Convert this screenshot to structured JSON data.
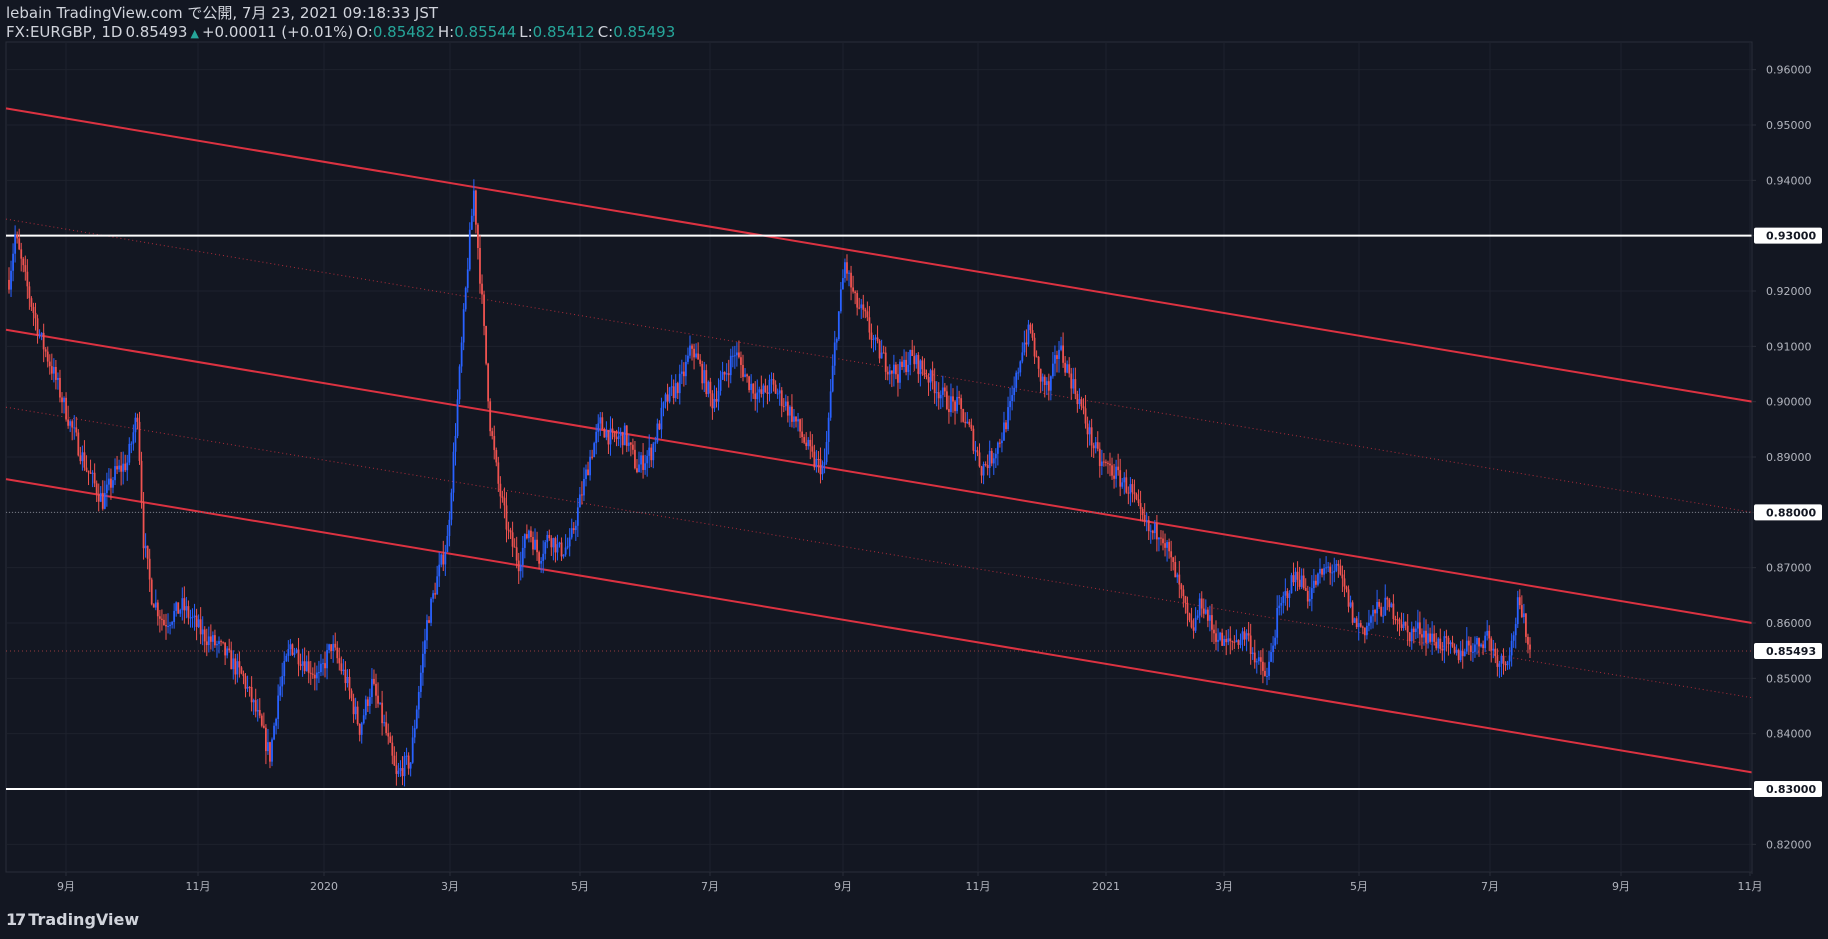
{
  "header": {
    "publish_line": "lebain TradingView.com で公開, 7月 23, 2021 09:18:33 JST",
    "symbol": "FX:EURGBP, 1D",
    "last": "0.85493",
    "change": "+0.00011 (+0.01%)",
    "o_label": "O:",
    "o_value": "0.85482",
    "h_label": "H:",
    "h_value": "0.85544",
    "l_label": "L:",
    "l_value": "0.85412",
    "c_label": "C:",
    "c_value": "0.85493",
    "arrow": "▲"
  },
  "brand": {
    "mark": "17",
    "name": "TradingView"
  },
  "colors": {
    "background": "#131722",
    "up": "#2962ff",
    "down": "#ef5350",
    "channel": "#f23645",
    "level": "#ffffff",
    "grid": "#1e222d",
    "axis_text": "#b2b5be"
  },
  "chart_data": {
    "type": "candlestick",
    "symbol": "EURGBP",
    "interval": "1D",
    "ylim": [
      0.815,
      0.965
    ],
    "y_ticks": [
      "0.82000",
      "0.83000",
      "0.84000",
      "0.85000",
      "0.86000",
      "0.87000",
      "0.88000",
      "0.89000",
      "0.90000",
      "0.91000",
      "0.92000",
      "0.93000",
      "0.94000",
      "0.95000",
      "0.96000"
    ],
    "x_tick_labels": [
      "9月",
      "11月",
      "2020",
      "3月",
      "5月",
      "7月",
      "9月",
      "11月",
      "2021",
      "3月",
      "5月",
      "7月",
      "9月",
      "11月"
    ],
    "price_labels": {
      "upper_level": "0.93000",
      "lower_level": "0.83000",
      "dotted_level": "0.88000",
      "last_price": "0.85493"
    },
    "horizontal_levels": [
      0.93,
      0.83,
      0.88
    ],
    "channel_lines": [
      {
        "name": "upper",
        "start": 0.953,
        "end": 0.9,
        "style": "solid"
      },
      {
        "name": "upper-mid",
        "start": 0.933,
        "end": 0.88,
        "style": "dotted"
      },
      {
        "name": "middle",
        "start": 0.913,
        "end": 0.86,
        "style": "solid"
      },
      {
        "name": "lower-mid",
        "start": 0.899,
        "end": 0.8465,
        "style": "dotted"
      },
      {
        "name": "lower",
        "start": 0.886,
        "end": 0.833,
        "style": "solid"
      }
    ],
    "close_path": [
      [
        0,
        0.922
      ],
      [
        3,
        0.93
      ],
      [
        8,
        0.922
      ],
      [
        15,
        0.912
      ],
      [
        22,
        0.905
      ],
      [
        30,
        0.896
      ],
      [
        38,
        0.888
      ],
      [
        46,
        0.882
      ],
      [
        52,
        0.887
      ],
      [
        58,
        0.889
      ],
      [
        63,
        0.898
      ],
      [
        66,
        0.875
      ],
      [
        70,
        0.865
      ],
      [
        76,
        0.86
      ],
      [
        85,
        0.863
      ],
      [
        95,
        0.858
      ],
      [
        105,
        0.855
      ],
      [
        115,
        0.85
      ],
      [
        122,
        0.843
      ],
      [
        128,
        0.836
      ],
      [
        132,
        0.847
      ],
      [
        138,
        0.856
      ],
      [
        145,
        0.853
      ],
      [
        152,
        0.85
      ],
      [
        158,
        0.856
      ],
      [
        165,
        0.85
      ],
      [
        172,
        0.841
      ],
      [
        178,
        0.849
      ],
      [
        185,
        0.84
      ],
      [
        190,
        0.832
      ],
      [
        193,
        0.834
      ],
      [
        197,
        0.835
      ],
      [
        200,
        0.845
      ],
      [
        205,
        0.86
      ],
      [
        210,
        0.868
      ],
      [
        215,
        0.875
      ],
      [
        220,
        0.9
      ],
      [
        225,
        0.925
      ],
      [
        228,
        0.938
      ],
      [
        232,
        0.918
      ],
      [
        236,
        0.896
      ],
      [
        240,
        0.885
      ],
      [
        245,
        0.876
      ],
      [
        250,
        0.871
      ],
      [
        255,
        0.877
      ],
      [
        260,
        0.872
      ],
      [
        265,
        0.876
      ],
      [
        270,
        0.873
      ],
      [
        275,
        0.874
      ],
      [
        280,
        0.882
      ],
      [
        285,
        0.89
      ],
      [
        290,
        0.896
      ],
      [
        296,
        0.893
      ],
      [
        302,
        0.894
      ],
      [
        308,
        0.888
      ],
      [
        315,
        0.891
      ],
      [
        322,
        0.9
      ],
      [
        330,
        0.904
      ],
      [
        335,
        0.91
      ],
      [
        340,
        0.905
      ],
      [
        345,
        0.9
      ],
      [
        350,
        0.904
      ],
      [
        356,
        0.909
      ],
      [
        362,
        0.904
      ],
      [
        368,
        0.901
      ],
      [
        374,
        0.903
      ],
      [
        380,
        0.9
      ],
      [
        385,
        0.897
      ],
      [
        390,
        0.893
      ],
      [
        395,
        0.889
      ],
      [
        400,
        0.888
      ],
      [
        405,
        0.91
      ],
      [
        410,
        0.925
      ],
      [
        415,
        0.918
      ],
      [
        420,
        0.915
      ],
      [
        425,
        0.91
      ],
      [
        430,
        0.907
      ],
      [
        436,
        0.905
      ],
      [
        442,
        0.908
      ],
      [
        448,
        0.906
      ],
      [
        454,
        0.903
      ],
      [
        460,
        0.9
      ],
      [
        466,
        0.899
      ],
      [
        472,
        0.894
      ],
      [
        477,
        0.888
      ],
      [
        482,
        0.89
      ],
      [
        487,
        0.894
      ],
      [
        492,
        0.9
      ],
      [
        497,
        0.91
      ],
      [
        501,
        0.913
      ],
      [
        505,
        0.905
      ],
      [
        510,
        0.902
      ],
      [
        515,
        0.91
      ],
      [
        520,
        0.905
      ],
      [
        525,
        0.9
      ],
      [
        530,
        0.894
      ],
      [
        535,
        0.889
      ],
      [
        540,
        0.888
      ],
      [
        545,
        0.886
      ],
      [
        550,
        0.884
      ],
      [
        555,
        0.879
      ],
      [
        560,
        0.876
      ],
      [
        565,
        0.877
      ],
      [
        570,
        0.871
      ],
      [
        575,
        0.865
      ],
      [
        580,
        0.858
      ],
      [
        585,
        0.864
      ],
      [
        590,
        0.859
      ],
      [
        596,
        0.856
      ],
      [
        602,
        0.857
      ],
      [
        607,
        0.858
      ],
      [
        612,
        0.853
      ],
      [
        617,
        0.85
      ],
      [
        622,
        0.861
      ],
      [
        627,
        0.866
      ],
      [
        632,
        0.869
      ],
      [
        637,
        0.865
      ],
      [
        642,
        0.868
      ],
      [
        647,
        0.87
      ],
      [
        652,
        0.869
      ],
      [
        656,
        0.865
      ],
      [
        660,
        0.86
      ],
      [
        665,
        0.859
      ],
      [
        670,
        0.862
      ],
      [
        675,
        0.863
      ],
      [
        680,
        0.862
      ],
      [
        686,
        0.858
      ],
      [
        692,
        0.859
      ],
      [
        698,
        0.857
      ],
      [
        704,
        0.856
      ],
      [
        710,
        0.854
      ],
      [
        715,
        0.856
      ],
      [
        720,
        0.856
      ],
      [
        725,
        0.858
      ],
      [
        729,
        0.854
      ],
      [
        733,
        0.853
      ],
      [
        737,
        0.856
      ],
      [
        740,
        0.863
      ],
      [
        744,
        0.859
      ],
      [
        746,
        0.855
      ]
    ],
    "annotations": "Descending regression channel with parallel lines; horizontal support 0.83000 and resistance 0.93000"
  }
}
